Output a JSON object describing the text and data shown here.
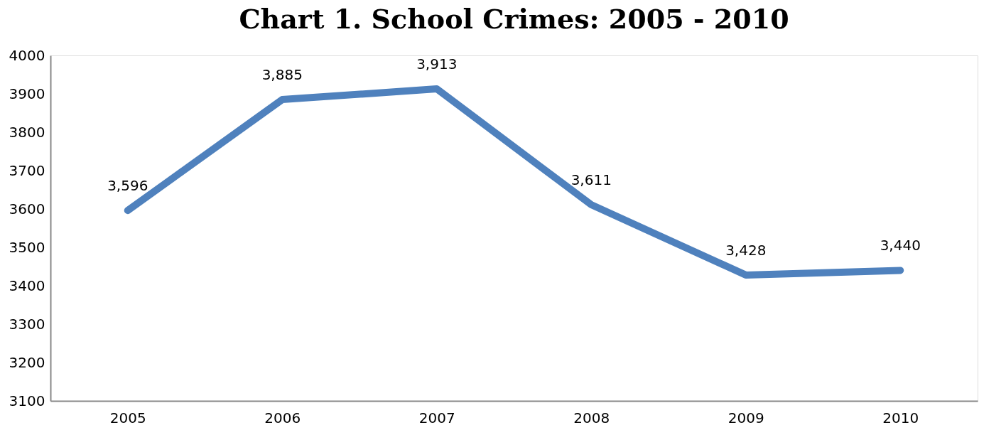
{
  "chart_data": {
    "type": "line",
    "title": "Chart 1. School Crimes: 2005 - 2010",
    "categories": [
      "2005",
      "2006",
      "2007",
      "2008",
      "2009",
      "2010"
    ],
    "series": [
      {
        "color": "#4f81bd",
        "values": [
          3596,
          3885,
          3913,
          3611,
          3428,
          3440
        ]
      }
    ],
    "value_labels": [
      "3,596",
      "3,885",
      "3,913",
      "3,611",
      "3,428",
      "3,440"
    ],
    "ylim": [
      3100,
      4000
    ],
    "yticks": [
      3100,
      3200,
      3300,
      3400,
      3500,
      3600,
      3700,
      3800,
      3900,
      4000
    ],
    "grid": false,
    "marker": "none",
    "line_style": "solid"
  }
}
